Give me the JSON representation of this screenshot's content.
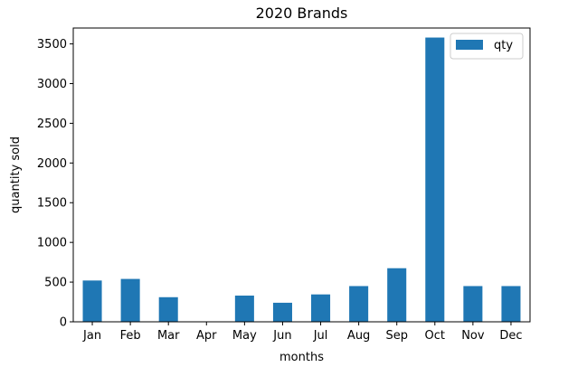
{
  "chart_data": {
    "type": "bar",
    "title": "2020 Brands",
    "xlabel": "months",
    "ylabel": "quantity sold",
    "categories": [
      "Jan",
      "Feb",
      "Mar",
      "Apr",
      "May",
      "Jun",
      "Jul",
      "Aug",
      "Sep",
      "Oct",
      "Nov",
      "Dec"
    ],
    "series": [
      {
        "name": "qty",
        "color": "#1f77b4",
        "values": [
          520,
          540,
          310,
          0,
          330,
          240,
          345,
          450,
          675,
          3580,
          450,
          450
        ]
      }
    ],
    "ylim": [
      0,
      3700
    ],
    "yticks": [
      0,
      500,
      1000,
      1500,
      2000,
      2500,
      3000,
      3500
    ],
    "grid": false,
    "legend_position": "top-right"
  }
}
